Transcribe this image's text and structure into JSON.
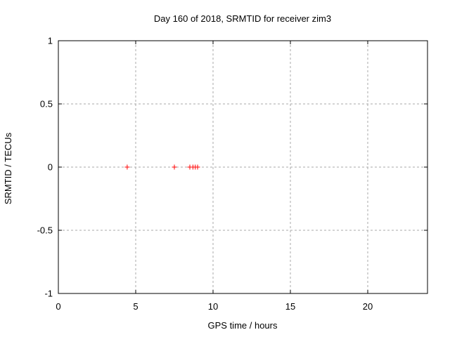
{
  "chart_data": {
    "type": "scatter",
    "title": "Day 160 of 2018, SRMTID for receiver zim3",
    "xlabel": "GPS time / hours",
    "ylabel": "SRMTID / TECUs",
    "xlim": [
      0,
      24
    ],
    "ylim": [
      -1,
      1
    ],
    "xticks": [
      0,
      5,
      10,
      15,
      20
    ],
    "xtick_labels": [
      "0",
      "5",
      "10",
      "15",
      "20"
    ],
    "yticks": [
      -1,
      -0.5,
      0,
      0.5,
      1
    ],
    "ytick_labels": [
      "-1",
      "-0.5",
      "0",
      "0.5",
      "1"
    ],
    "grid": true,
    "legend": false,
    "series": [
      {
        "name": "SRMTID",
        "marker": "plus",
        "color": "#ff0000",
        "points": [
          {
            "x": 4.45,
            "y": 0.0
          },
          {
            "x": 7.5,
            "y": 0.0
          },
          {
            "x": 8.5,
            "y": 0.0
          },
          {
            "x": 8.7,
            "y": 0.0
          },
          {
            "x": 8.85,
            "y": 0.0
          },
          {
            "x": 9.0,
            "y": 0.0
          }
        ]
      }
    ],
    "colors": {
      "background": "#ffffff",
      "axis": "#000000",
      "grid": "#a8a8a8",
      "points": "#ff0000",
      "text": "#000000"
    }
  }
}
